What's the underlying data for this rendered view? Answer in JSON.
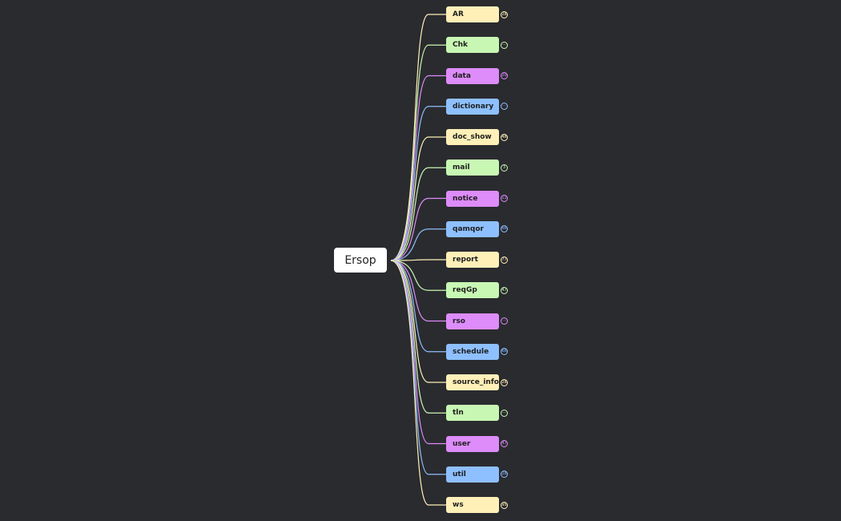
{
  "root": {
    "label": "Ersop"
  },
  "palette": [
    "#fff0b8",
    "#c8f7b4",
    "#dd8cf9",
    "#8ec0ff"
  ],
  "children": [
    {
      "label": "AR",
      "badge": "28"
    },
    {
      "label": "Chk",
      "badge": "···"
    },
    {
      "label": "data",
      "badge": "20"
    },
    {
      "label": "dictionary",
      "badge": "···"
    },
    {
      "label": "doc_show",
      "badge": "48"
    },
    {
      "label": "mail",
      "badge": "3"
    },
    {
      "label": "notice",
      "badge": "11"
    },
    {
      "label": "qamqor",
      "badge": "66"
    },
    {
      "label": "report",
      "badge": "77"
    },
    {
      "label": "reqGp",
      "badge": "47"
    },
    {
      "label": "rso",
      "badge": "···"
    },
    {
      "label": "schedule",
      "badge": "66"
    },
    {
      "label": "source_info",
      "badge": "28"
    },
    {
      "label": "tln",
      "badge": "···"
    },
    {
      "label": "user",
      "badge": "47"
    },
    {
      "label": "util",
      "badge": "28"
    },
    {
      "label": "ws",
      "badge": "95"
    }
  ]
}
